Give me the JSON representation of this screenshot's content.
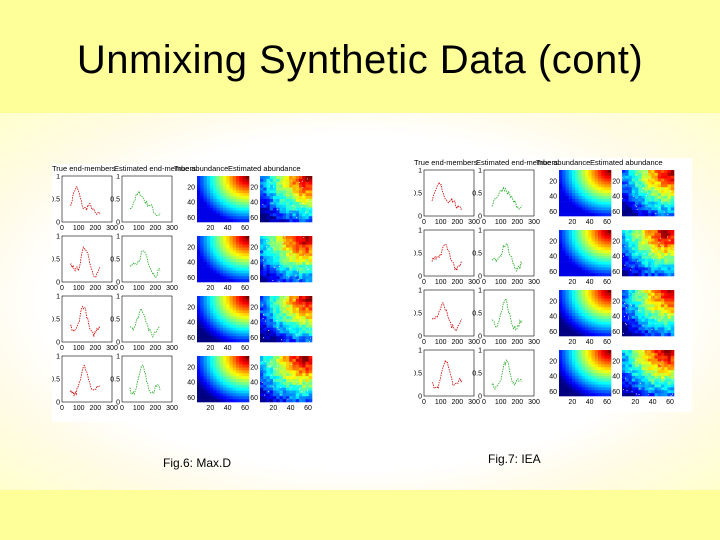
{
  "slide": {
    "title": "Unmixing Synthetic Data (cont)"
  },
  "figures": [
    {
      "id": "maxd",
      "caption": "Fig.6: Max.D",
      "column_headers": [
        "True end-members",
        "Estimated end-members",
        "True abundance",
        "Estimated abundance"
      ],
      "spectrum_x_ticks": [
        "0",
        "100",
        "200",
        "300"
      ],
      "spectrum_y_ticks": [
        "0",
        "0.5",
        "1"
      ],
      "map_y_ticks": [
        "20",
        "40",
        "60"
      ],
      "map_x_ticks": [
        "20",
        "40",
        "60"
      ]
    },
    {
      "id": "iea",
      "caption": "Fig.7: IEA",
      "column_headers": [
        "True end-members",
        "Estimated end-members",
        "True abundance",
        "Estimated abundance"
      ],
      "spectrum_x_ticks": [
        "0",
        "100",
        "200",
        "300"
      ],
      "spectrum_y_ticks": [
        "0",
        "0.5",
        "1"
      ],
      "map_y_ticks": [
        "20",
        "40",
        "60"
      ],
      "map_x_ticks": [
        "20",
        "40",
        "60"
      ]
    }
  ],
  "colors": {
    "slide_background": "#ffff99",
    "true_endmember_line": "#cc0000",
    "estimated_endmember_line": "#22aa22"
  }
}
